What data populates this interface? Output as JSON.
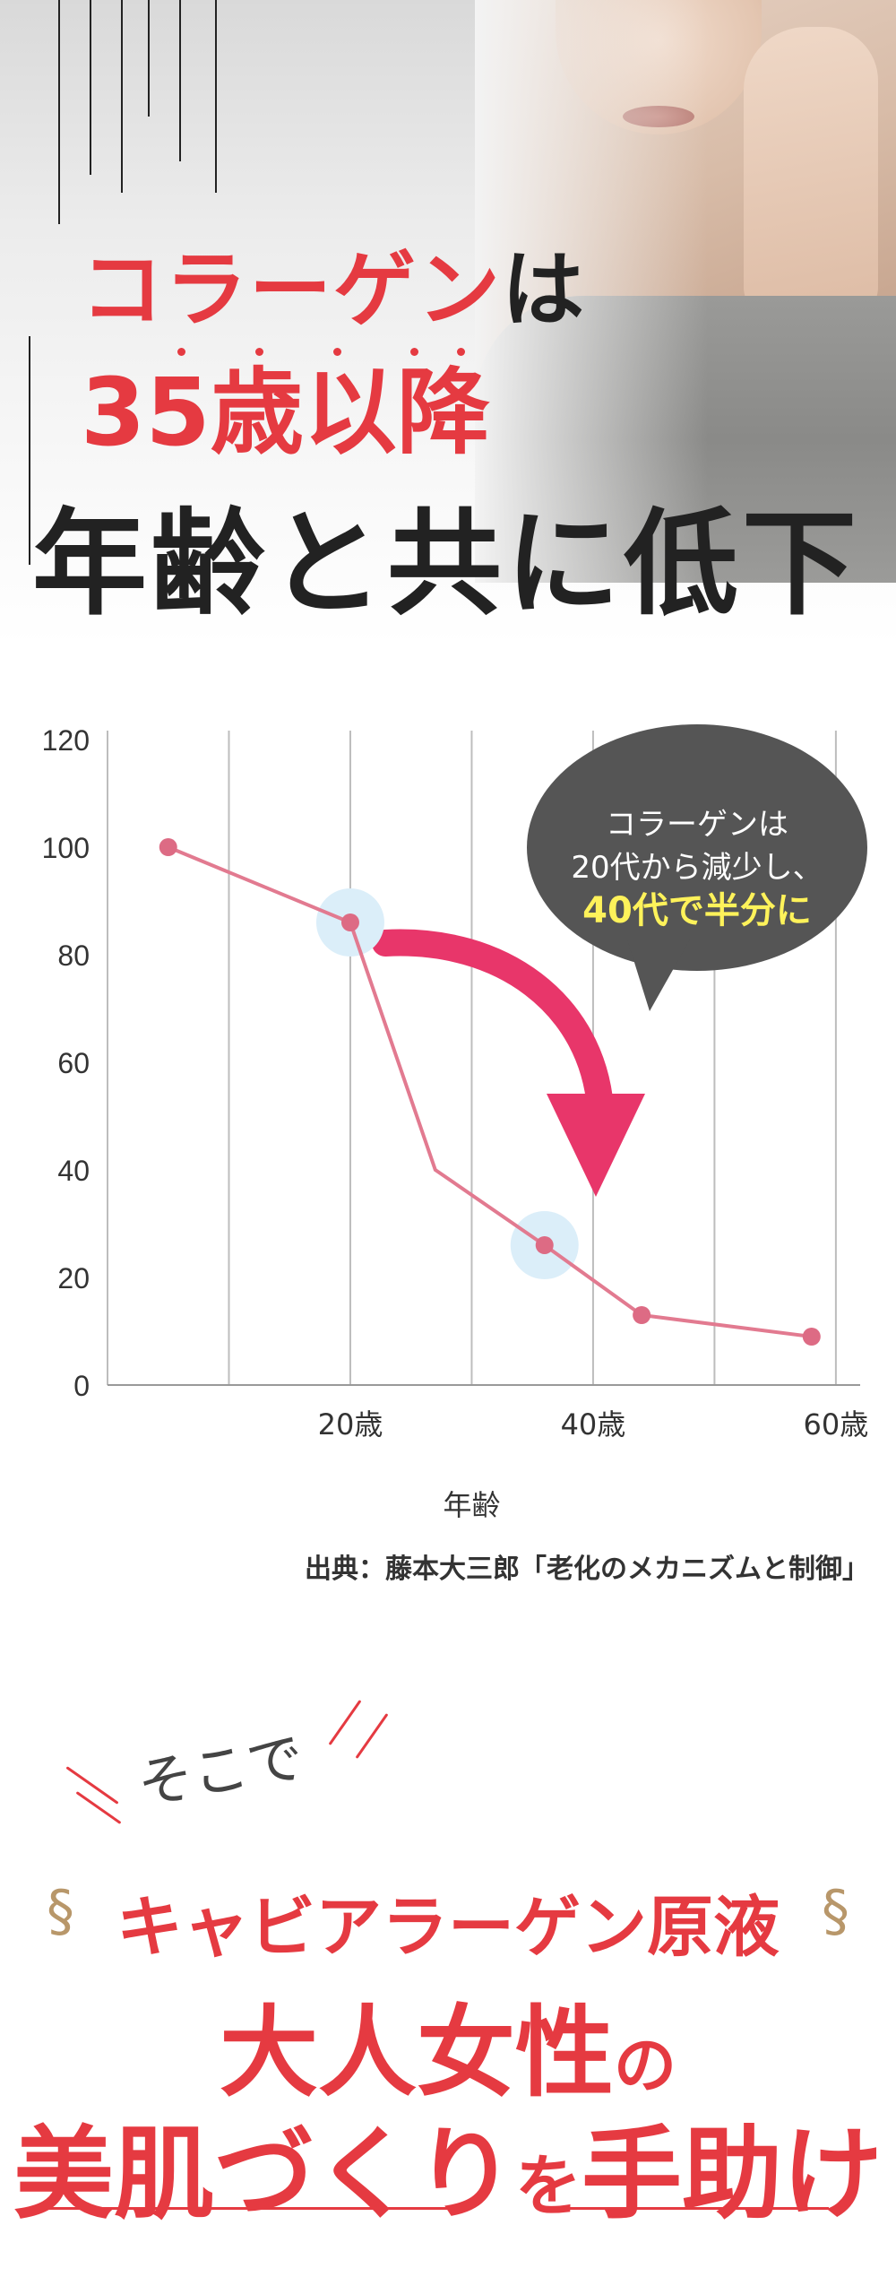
{
  "hero": {
    "title_line1_red": "コラーゲン",
    "title_line1_dark": "は",
    "title_line2": "35歳以降",
    "title_line3": "年齢と共に低下"
  },
  "colors": {
    "accent_red": "#e53a41",
    "line_pink": "#e27a90",
    "highlight_yellow": "#fef25a",
    "callout_gray": "#555555"
  },
  "callout": {
    "line1": "コラーゲンは",
    "line2": "20代から減少し、",
    "line3": "40代で半分に"
  },
  "chart_data": {
    "type": "line",
    "x": [
      5,
      20,
      27,
      36,
      44,
      58
    ],
    "values": [
      100,
      86,
      40,
      26,
      13,
      9
    ],
    "markers": [
      true,
      true,
      false,
      true,
      true,
      true
    ],
    "highlighted_points": [
      1,
      3
    ],
    "xticks": [
      "20歳",
      "40歳",
      "60歳"
    ],
    "yticks": [
      "0",
      "20",
      "40",
      "60",
      "80",
      "100",
      "120"
    ],
    "xlabel": "年齢",
    "ylabel": "",
    "ylim": [
      0,
      120
    ],
    "grid": true
  },
  "source": "出典：藤本大三郎「老化のメカニズムと制御」",
  "promo": {
    "lead": "そこで",
    "line1": "キャビアラーゲン原液",
    "line2_main": "大人女性",
    "line2_small": "の",
    "line3_a": "美肌づくり",
    "line3_small": "を",
    "line3_b": "手助け",
    "ornament_left": "§",
    "ornament_right": "§"
  }
}
